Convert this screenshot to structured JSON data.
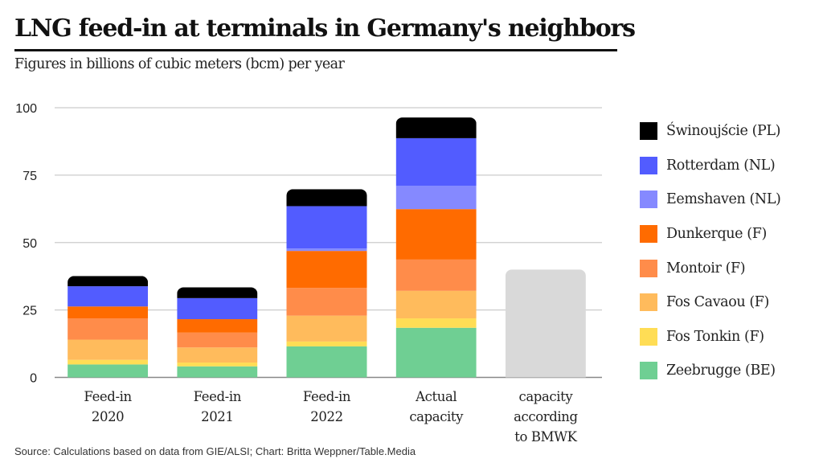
{
  "chart_data": {
    "type": "bar",
    "stacked": true,
    "title": "LNG feed-in at terminals in Germany's neighbors",
    "subtitle": "Figures in billions of cubic meters (bcm) per year",
    "xlabel": "",
    "ylabel": "",
    "ylim": [
      0,
      100
    ],
    "yticks": [
      "0",
      "25",
      "50",
      "75",
      "100"
    ],
    "ytick_values": [
      0,
      25,
      50,
      75,
      100
    ],
    "grid": true,
    "legend_position": "right",
    "categories": [
      [
        "Feed-in",
        "2020"
      ],
      [
        "Feed-in",
        "2021"
      ],
      [
        "Feed-in",
        "2022"
      ],
      [
        "Actual",
        "capacity"
      ],
      [
        "capacity",
        "according",
        "to BMWK"
      ]
    ],
    "series": [
      {
        "name": "Zeebrugge (BE)",
        "color": "#6fcf93",
        "values": [
          4.8,
          4.1,
          11.5,
          18.4,
          0
        ]
      },
      {
        "name": "Fos Tonkin (F)",
        "color": "#ffdd55",
        "values": [
          1.7,
          1.4,
          1.8,
          3.5,
          0
        ]
      },
      {
        "name": "Fos Cavaou (F)",
        "color": "#ffbb5c",
        "values": [
          7.5,
          5.6,
          9.6,
          10.2,
          0
        ]
      },
      {
        "name": "Montoir (F)",
        "color": "#ff8c4a",
        "values": [
          7.9,
          5.5,
          10.3,
          11.6,
          0
        ]
      },
      {
        "name": "Dunkerque (F)",
        "color": "#ff6b00",
        "values": [
          4.4,
          5.0,
          13.7,
          18.7,
          0
        ]
      },
      {
        "name": "Eemshaven (NL)",
        "color": "#8589ff",
        "values": [
          0,
          0,
          0.9,
          8.6,
          0
        ]
      },
      {
        "name": "Rotterdam (NL)",
        "color": "#525cff",
        "values": [
          7.5,
          7.8,
          15.7,
          17.7,
          0
        ]
      },
      {
        "name": "Świnoujście (PL)",
        "color": "#000000",
        "values": [
          3.8,
          4.0,
          6.3,
          7.7,
          0
        ]
      },
      {
        "name": "capacity according to BMWK",
        "color": "#d9d9d9",
        "values": [
          0,
          0,
          0,
          0,
          40
        ],
        "in_legend": false
      }
    ],
    "legend": [
      {
        "name": "Świnoujście (PL)",
        "color": "#000000"
      },
      {
        "name": "Rotterdam (NL)",
        "color": "#525cff"
      },
      {
        "name": "Eemshaven (NL)",
        "color": "#8589ff"
      },
      {
        "name": "Dunkerque (F)",
        "color": "#ff6b00"
      },
      {
        "name": "Montoir (F)",
        "color": "#ff8c4a"
      },
      {
        "name": "Fos Cavaou (F)",
        "color": "#ffbb5c"
      },
      {
        "name": "Fos Tonkin (F)",
        "color": "#ffdd55"
      },
      {
        "name": "Zeebrugge (BE)",
        "color": "#6fcf93"
      }
    ],
    "source": "Source: Calculations based on data from GIE/ALSI; Chart: Britta Weppner/Table.Media"
  }
}
